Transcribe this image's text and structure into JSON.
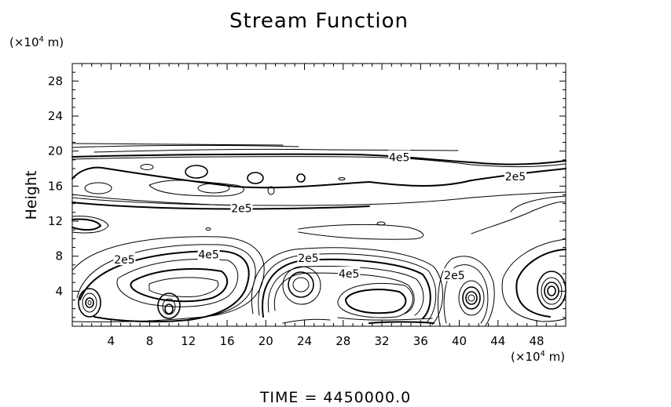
{
  "chart_data": {
    "type": "contour",
    "title": "Stream Function",
    "ylabel": "Height",
    "y_unit_prefix": "(×10",
    "unit_exponent": "4",
    "unit_suffix": " m)",
    "xlim": [
      0,
      51
    ],
    "ylim": [
      0,
      30
    ],
    "x_ticks": [
      4,
      8,
      12,
      16,
      20,
      24,
      28,
      32,
      36,
      40,
      44,
      48
    ],
    "y_ticks": [
      4,
      8,
      12,
      16,
      20,
      24,
      28
    ],
    "contour_labels": [
      {
        "text": "4e5",
        "x": 33.8,
        "y": 19.3
      },
      {
        "text": "2e5",
        "x": 45.8,
        "y": 17.1
      },
      {
        "text": "2e5",
        "x": 17.5,
        "y": 13.5
      },
      {
        "text": "2e5",
        "x": 5.4,
        "y": 7.6
      },
      {
        "text": "4e5",
        "x": 14.1,
        "y": 8.2
      },
      {
        "text": "2e5",
        "x": 24.4,
        "y": 7.8
      },
      {
        "text": "4e5",
        "x": 28.6,
        "y": 6.0
      },
      {
        "text": "2e5",
        "x": 39.5,
        "y": 5.8
      }
    ],
    "footer": "TIME  =  4450000.0"
  }
}
